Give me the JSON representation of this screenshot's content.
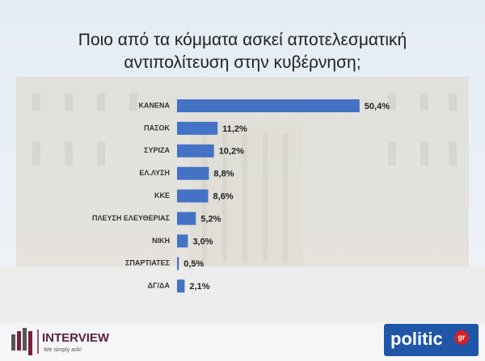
{
  "chart_data": {
    "type": "bar",
    "orientation": "horizontal",
    "title": "Ποιο από τα κόμματα ασκεί αποτελεσματική αντιπολίτευση στην κυβέρνηση;",
    "categories": [
      "ΚΑΝΕΝΑ",
      "ΠΑΣΟΚ",
      "ΣΥΡΙΖΑ",
      "ΕΛ.ΛΥΣΗ",
      "ΚΚΕ",
      "ΠΛΕΥΣΗ ΕΛΕΥΘΕΡΙΑΣ",
      "ΝΙΚΗ",
      "ΣΠΑΡΤΙΑΤΕΣ",
      "ΔΓ/ΔΑ"
    ],
    "values": [
      50.4,
      11.2,
      10.2,
      8.8,
      8.6,
      5.2,
      3.0,
      0.5,
      2.1
    ],
    "value_labels": [
      "50,4%",
      "11,2%",
      "10,2%",
      "8,8%",
      "8,6%",
      "5,2%",
      "3,0%",
      "0,5%",
      "2,1%"
    ],
    "color": "#4472c4"
  },
  "branding": {
    "left": "INTERVIEW",
    "left_tagline": "We simply ask!",
    "right": "politic",
    "right_suffix": "gr"
  }
}
